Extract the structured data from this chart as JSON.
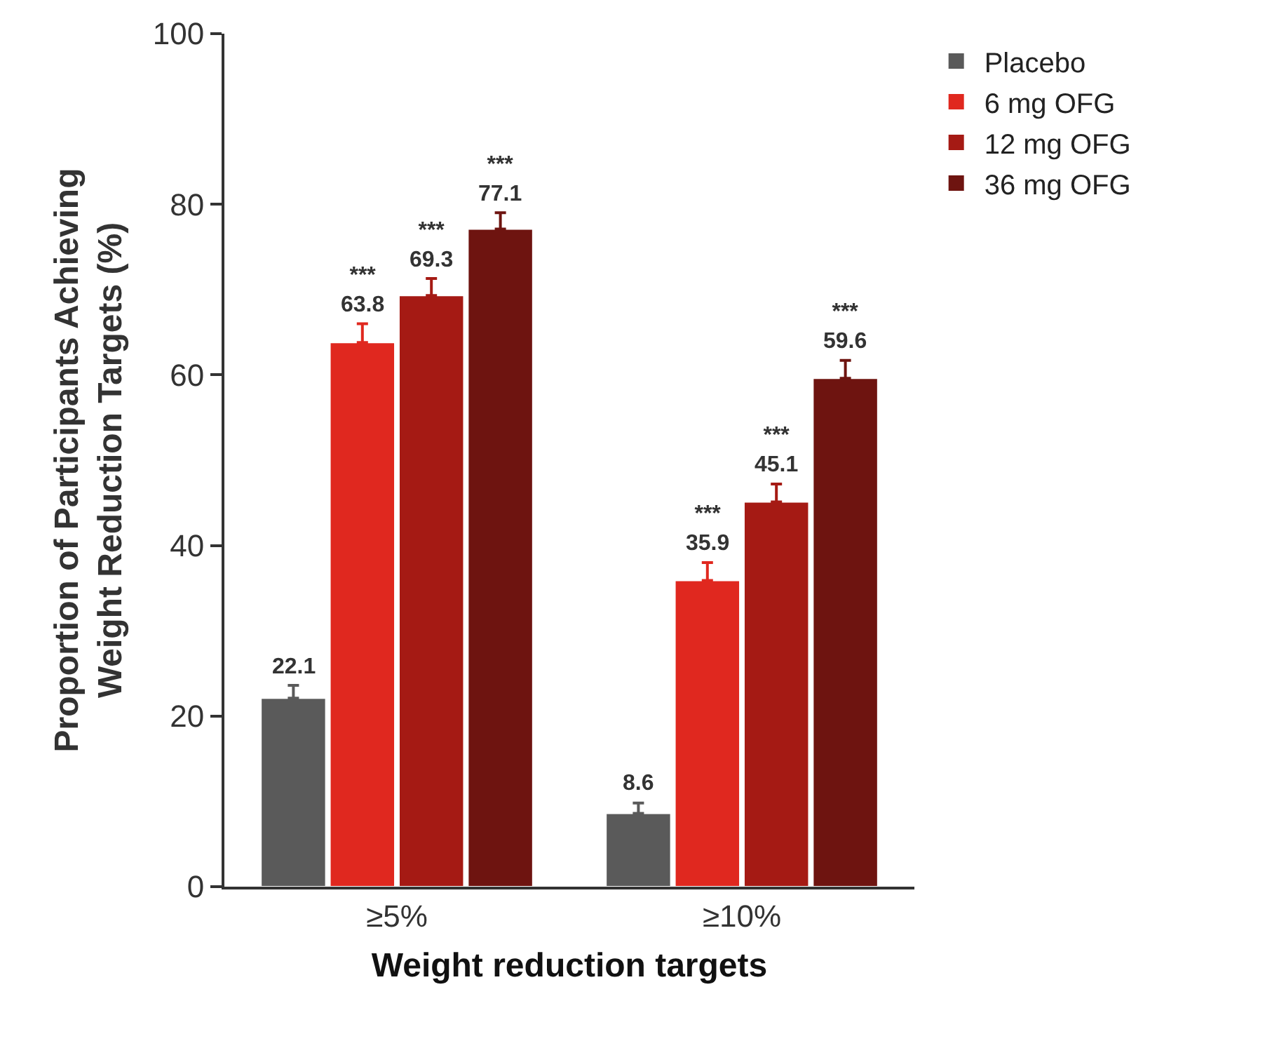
{
  "chart_data": {
    "type": "bar",
    "xlabel": "Weight reduction targets",
    "ylabel": "Proportion of Participants Achieving\nWeight Reduction Targets (%)",
    "categories": [
      "≥5%",
      "≥10%"
    ],
    "series": [
      {
        "name": "Placebo",
        "color": "#5a5a5a",
        "values": [
          22.1,
          8.6
        ],
        "errors": [
          [
            22.1,
            23.6
          ],
          [
            8.6,
            9.8
          ]
        ],
        "value_labels": [
          "22.1",
          "8.6"
        ]
      },
      {
        "name": "6 mg OFG",
        "color": "#e0281f",
        "values": [
          63.8,
          35.9
        ],
        "errors": [
          [
            63.8,
            66.0
          ],
          [
            35.9,
            38.0
          ]
        ],
        "value_labels": [
          "***\n63.8",
          "***\n35.9"
        ]
      },
      {
        "name": "12 mg OFG",
        "color": "#a51a14",
        "values": [
          69.3,
          45.1
        ],
        "errors": [
          [
            69.3,
            71.3
          ],
          [
            45.1,
            47.2
          ]
        ],
        "value_labels": [
          "***\n69.3",
          "***\n45.1"
        ]
      },
      {
        "name": "36 mg OFG",
        "color": "#6e1410",
        "values": [
          77.1,
          59.6
        ],
        "errors": [
          [
            77.1,
            79.0
          ],
          [
            59.6,
            61.7
          ]
        ],
        "value_labels": [
          "***\n77.1",
          "***\n59.6"
        ]
      }
    ],
    "ylim": [
      0,
      100
    ],
    "yticks": [
      0,
      20,
      40,
      60,
      80,
      100
    ],
    "legend": "top right"
  }
}
